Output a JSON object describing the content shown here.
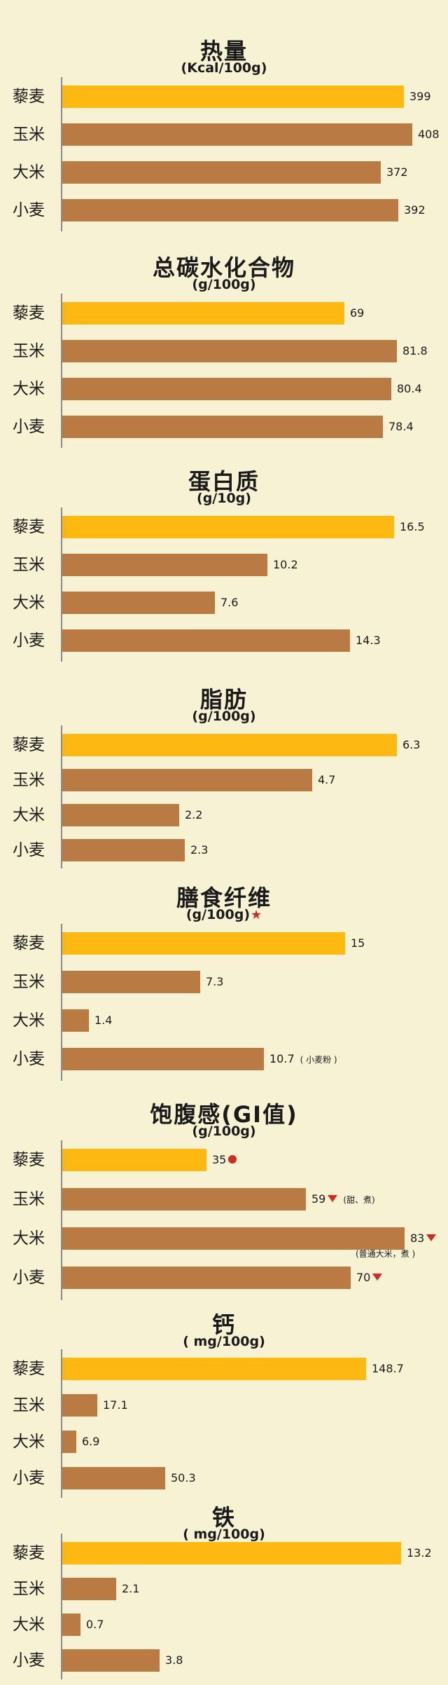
{
  "colors": {
    "highlight": "#fdb812",
    "default": "#b97a44",
    "marker": "#d32b1e"
  },
  "chart_data": [
    {
      "type": "bar",
      "orientation": "horizontal",
      "title": "热量",
      "unit": "(Kcal/100g)",
      "categories": [
        "藜麦",
        "玉米",
        "大米",
        "小麦"
      ],
      "values": [
        399,
        408,
        372,
        392
      ],
      "value_labels": [
        "399",
        "408",
        "372",
        "392"
      ],
      "highlight_index": 0
    },
    {
      "type": "bar",
      "orientation": "horizontal",
      "title": "总碳水化合物",
      "unit": "(g/100g)",
      "categories": [
        "藜麦",
        "玉米",
        "大米",
        "小麦"
      ],
      "values": [
        69,
        81.8,
        80.4,
        78.4
      ],
      "value_labels": [
        "69",
        "81.8",
        "80.4",
        "78.4"
      ],
      "highlight_index": 0
    },
    {
      "type": "bar",
      "orientation": "horizontal",
      "title": "蛋白质",
      "unit": "(g/10g)",
      "categories": [
        "藜麦",
        "玉米",
        "大米",
        "小麦"
      ],
      "values": [
        16.5,
        10.2,
        7.6,
        14.3
      ],
      "value_labels": [
        "16.5",
        "10.2",
        "7.6",
        "14.3"
      ],
      "highlight_index": 0
    },
    {
      "type": "bar",
      "orientation": "horizontal",
      "title": "脂肪",
      "unit": "(g/100g)",
      "categories": [
        "藜麦",
        "玉米",
        "大米",
        "小麦"
      ],
      "values": [
        6.3,
        4.7,
        2.2,
        2.3
      ],
      "value_labels": [
        "6.3",
        "4.7",
        "2.2",
        "2.3"
      ],
      "highlight_index": 0
    },
    {
      "type": "bar",
      "orientation": "horizontal",
      "title": "膳食纤维",
      "unit": "(g/100g)",
      "unit_marker": "star",
      "categories": [
        "藜麦",
        "玉米",
        "大米",
        "小麦"
      ],
      "values": [
        15,
        7.3,
        1.4,
        10.7
      ],
      "value_labels": [
        "15",
        "7.3",
        "1.4",
        "10.7"
      ],
      "notes": [
        "",
        "",
        "",
        "( 小麦粉 )"
      ],
      "highlight_index": 0
    },
    {
      "type": "bar",
      "orientation": "horizontal",
      "title": "饱腹感(GI值)",
      "unit": "(g/100g)",
      "categories": [
        "藜麦",
        "玉米",
        "大米",
        "小麦"
      ],
      "values": [
        35,
        59,
        83,
        70
      ],
      "value_labels": [
        "35",
        "59",
        "83",
        "70"
      ],
      "markers": [
        "dot",
        "down-triangle",
        "down-triangle",
        "down-triangle"
      ],
      "notes": [
        "",
        "(甜、煮)",
        "(普通大米，煮 )",
        ""
      ],
      "highlight_index": 0
    },
    {
      "type": "bar",
      "orientation": "horizontal",
      "title": "钙",
      "unit": "( mg/100g)",
      "categories": [
        "藜麦",
        "玉米",
        "大米",
        "小麦"
      ],
      "values": [
        148.7,
        17.1,
        6.9,
        50.3
      ],
      "value_labels": [
        "148.7",
        "17.1",
        "6.9",
        "50.3"
      ],
      "highlight_index": 0
    },
    {
      "type": "bar",
      "orientation": "horizontal",
      "title": "铁",
      "unit": "( mg/100g)",
      "categories": [
        "藜麦",
        "玉米",
        "大米",
        "小麦"
      ],
      "values": [
        13.2,
        2.1,
        0.7,
        3.8
      ],
      "value_labels": [
        "13.2",
        "2.1",
        "0.7",
        "3.8"
      ],
      "highlight_index": 0
    }
  ]
}
